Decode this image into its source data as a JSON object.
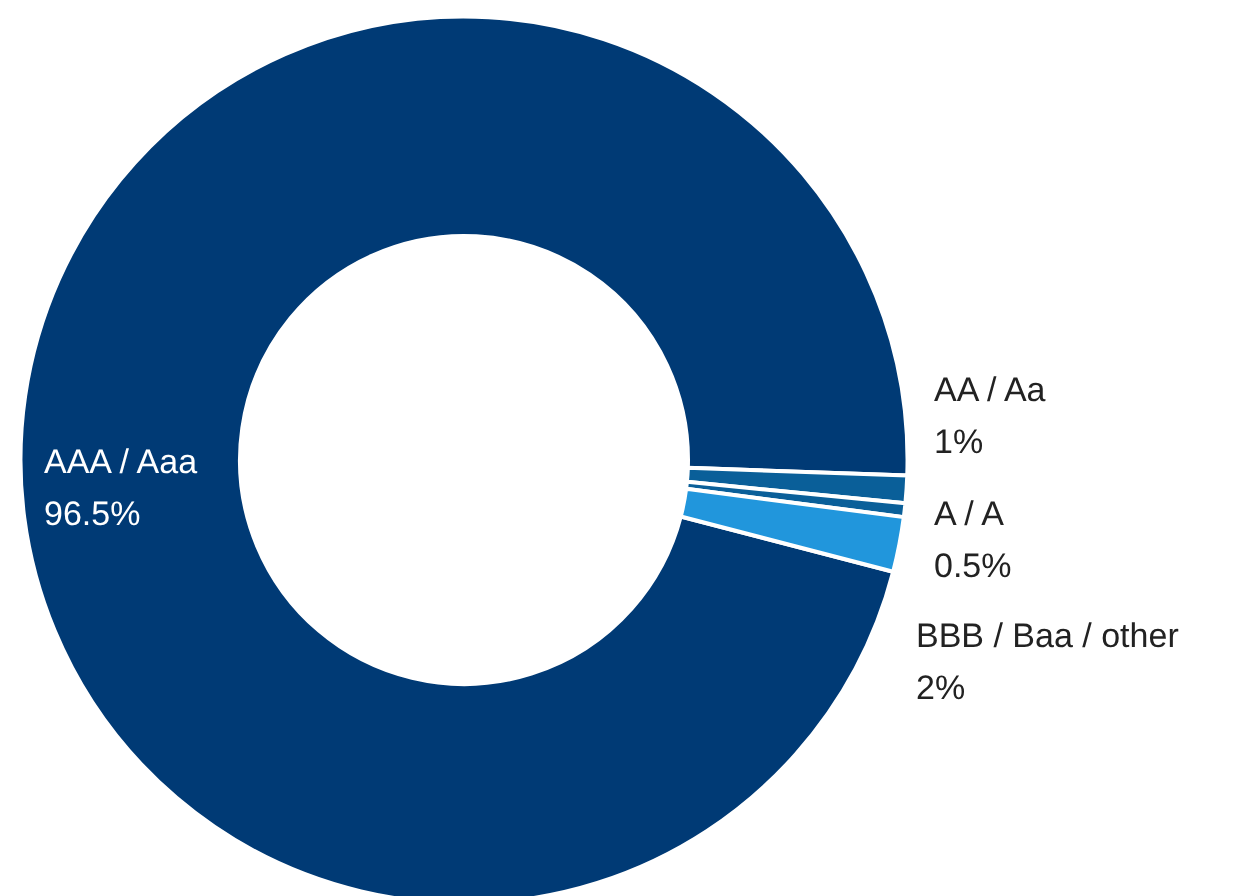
{
  "chart_data": {
    "type": "donut",
    "categories": [
      "AAA / Aaa",
      "AA / Aa",
      "A / A",
      "BBB / Baa / other"
    ],
    "values": [
      96.5,
      1,
      0.5,
      2
    ],
    "colors": [
      "#003a75",
      "#0a5f99",
      "#0a5f99",
      "#2196dc"
    ],
    "value_labels": [
      "96.5%",
      "1%",
      "0.5%",
      "2%"
    ]
  }
}
